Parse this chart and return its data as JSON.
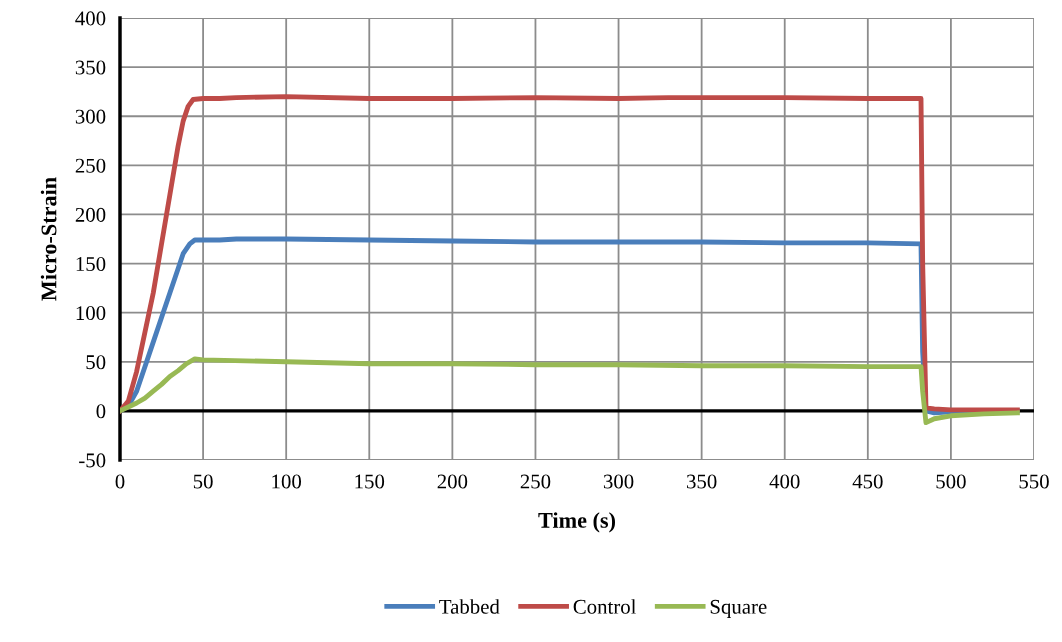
{
  "chart_data": {
    "type": "line",
    "xlabel": "Time (s)",
    "ylabel": "Micro-Strain",
    "xlim": [
      0,
      550
    ],
    "ylim": [
      -50,
      400
    ],
    "xticks": [
      0,
      50,
      100,
      150,
      200,
      250,
      300,
      350,
      400,
      450,
      500,
      550
    ],
    "yticks": [
      -50,
      0,
      50,
      100,
      150,
      200,
      250,
      300,
      350,
      400
    ],
    "grid": true,
    "legend": "bottom",
    "marker": "none",
    "line_style": "solid",
    "series": [
      {
        "name": "Tabbed",
        "color": "#4a7ebb",
        "x": [
          0,
          5,
          10,
          15,
          20,
          25,
          30,
          35,
          38,
          42,
          45,
          60,
          70,
          100,
          150,
          200,
          250,
          300,
          350,
          400,
          450,
          482,
          483,
          485,
          490,
          500,
          540
        ],
        "values": [
          0,
          5,
          20,
          45,
          70,
          95,
          120,
          145,
          160,
          170,
          174,
          174,
          175,
          175,
          174,
          173,
          172,
          172,
          172,
          171,
          171,
          170,
          60,
          0,
          -2,
          -1,
          0
        ]
      },
      {
        "name": "Control",
        "color": "#be4b48",
        "x": [
          0,
          5,
          10,
          15,
          20,
          25,
          30,
          35,
          38,
          41,
          44,
          50,
          60,
          70,
          100,
          150,
          200,
          250,
          300,
          330,
          400,
          450,
          482,
          483,
          485,
          490,
          500,
          540
        ],
        "values": [
          0,
          10,
          40,
          80,
          120,
          170,
          220,
          270,
          295,
          310,
          317,
          318,
          318,
          319,
          320,
          318,
          318,
          319,
          318,
          319,
          319,
          318,
          318,
          150,
          3,
          2,
          1,
          1
        ]
      },
      {
        "name": "Square",
        "color": "#98b954",
        "x": [
          0,
          5,
          10,
          15,
          20,
          25,
          30,
          35,
          40,
          45,
          50,
          100,
          150,
          200,
          250,
          300,
          350,
          400,
          450,
          482,
          483,
          485,
          490,
          500,
          520,
          540
        ],
        "values": [
          0,
          4,
          8,
          13,
          20,
          27,
          35,
          41,
          48,
          53,
          52,
          50,
          48,
          48,
          47,
          47,
          46,
          46,
          45,
          45,
          20,
          -12,
          -8,
          -5,
          -3,
          -2
        ]
      }
    ]
  }
}
